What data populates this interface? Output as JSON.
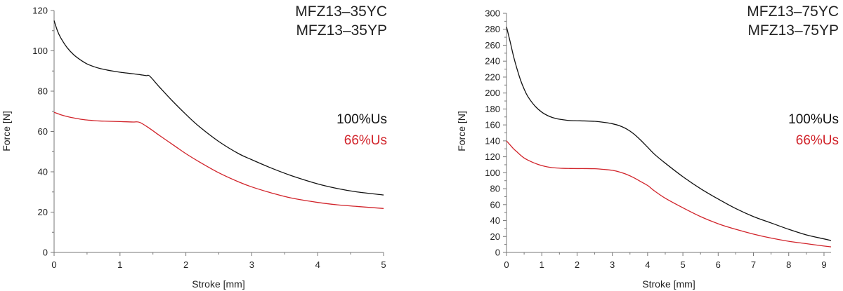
{
  "chart_data": [
    {
      "type": "line",
      "title_lines": [
        "MFZ13–35YC",
        "MFZ13–35YP"
      ],
      "xlabel": "Stroke [mm]",
      "ylabel": "Force [N]",
      "xlim": [
        0,
        5
      ],
      "ylim": [
        0,
        120
      ],
      "x_ticks": [
        0,
        1,
        2,
        3,
        4,
        5
      ],
      "x_tick_labels": [
        "0",
        "1",
        "2",
        "3",
        "4",
        "5"
      ],
      "y_ticks": [
        0,
        20,
        40,
        60,
        80,
        100,
        120
      ],
      "y_tick_labels": [
        "0",
        "20",
        "40",
        "60",
        "80",
        "100",
        "120"
      ],
      "grid": false,
      "legend_position": "right",
      "series": [
        {
          "name": "100%Us",
          "color": "#111111",
          "x": [
            0,
            0.05,
            0.1,
            0.2,
            0.3,
            0.4,
            0.5,
            0.6,
            0.7,
            0.8,
            0.9,
            1.0,
            1.1,
            1.2,
            1.3,
            1.4,
            1.45,
            1.6,
            1.8,
            2.0,
            2.2,
            2.5,
            2.8,
            3.0,
            3.3,
            3.6,
            4.0,
            4.3,
            4.6,
            5.0
          ],
          "y": [
            115,
            110,
            106.5,
            101.5,
            98,
            95.5,
            93.5,
            92.2,
            91.2,
            90.5,
            89.9,
            89.4,
            89,
            88.6,
            88.2,
            87.7,
            87.5,
            82,
            75,
            68.5,
            62.5,
            55,
            49,
            46,
            41.8,
            38.1,
            34,
            31.7,
            30,
            28.5
          ]
        },
        {
          "name": "66%Us",
          "color": "#d1232a",
          "x": [
            0,
            0.1,
            0.2,
            0.3,
            0.4,
            0.5,
            0.6,
            0.7,
            0.8,
            0.9,
            1.0,
            1.1,
            1.2,
            1.3,
            1.45,
            1.6,
            1.8,
            2.0,
            2.2,
            2.5,
            2.8,
            3.0,
            3.3,
            3.6,
            4.0,
            4.3,
            4.6,
            5.0
          ],
          "y": [
            69.5,
            68.3,
            67.4,
            66.7,
            66.1,
            65.7,
            65.4,
            65.2,
            65.1,
            65,
            64.9,
            64.8,
            64.7,
            64.5,
            61.5,
            58,
            53.5,
            49,
            45,
            39.5,
            35,
            32.5,
            29.5,
            27,
            24.8,
            23.6,
            22.8,
            21.8
          ]
        }
      ]
    },
    {
      "type": "line",
      "title_lines": [
        "MFZ13–75YC",
        "MFZ13–75YP"
      ],
      "xlabel": "Stroke [mm]",
      "ylabel": "Force [N]",
      "xlim": [
        0,
        9.2
      ],
      "ylim": [
        0,
        300
      ],
      "x_ticks": [
        0,
        1,
        2,
        3,
        4,
        5,
        6,
        7,
        8,
        9
      ],
      "x_tick_labels": [
        "0",
        "1",
        "2",
        "3",
        "4",
        "5",
        "6",
        "7",
        "8",
        "9"
      ],
      "y_ticks": [
        0,
        20,
        40,
        60,
        80,
        100,
        120,
        140,
        160,
        180,
        200,
        220,
        240,
        260,
        280,
        300
      ],
      "y_tick_labels": [
        "0",
        "20",
        "40",
        "60",
        "80",
        "100",
        "120",
        "140",
        "160",
        "180",
        "200",
        "220",
        "240",
        "260",
        "280",
        "300"
      ],
      "grid": false,
      "legend_position": "right",
      "series": [
        {
          "name": "100%Us",
          "color": "#111111",
          "x": [
            0,
            0.1,
            0.2,
            0.3,
            0.4,
            0.5,
            0.6,
            0.8,
            1.0,
            1.2,
            1.4,
            1.6,
            1.8,
            2.0,
            2.2,
            2.5,
            2.8,
            3.0,
            3.2,
            3.4,
            3.6,
            3.8,
            4.0,
            4.2,
            4.5,
            5.0,
            5.5,
            6.0,
            6.5,
            7.0,
            7.5,
            8.0,
            8.5,
            9.0,
            9.2
          ],
          "y": [
            283,
            265,
            246,
            230,
            216,
            205,
            196,
            184,
            176,
            171,
            168,
            166.5,
            165.5,
            165.2,
            165,
            164.5,
            163,
            161.5,
            159,
            155,
            149,
            141,
            132,
            123,
            112,
            95,
            80,
            67,
            55,
            45,
            37,
            29,
            22,
            17,
            15
          ]
        },
        {
          "name": "66%Us",
          "color": "#d1232a",
          "x": [
            0,
            0.1,
            0.2,
            0.3,
            0.4,
            0.5,
            0.6,
            0.8,
            1.0,
            1.2,
            1.4,
            1.6,
            1.8,
            2.0,
            2.2,
            2.5,
            2.8,
            3.0,
            3.2,
            3.4,
            3.6,
            3.8,
            4.0,
            4.2,
            4.5,
            5.0,
            5.5,
            6.0,
            6.5,
            7.0,
            7.5,
            8.0,
            8.5,
            9.0,
            9.2
          ],
          "y": [
            140,
            135,
            130,
            126,
            122,
            118.5,
            116,
            112,
            109,
            107,
            106,
            105.5,
            105.3,
            105.2,
            105.2,
            105,
            104,
            103,
            101,
            98,
            94,
            89,
            84,
            77,
            68,
            56,
            45,
            36,
            29,
            23,
            18,
            14,
            11,
            8,
            7
          ]
        }
      ]
    }
  ]
}
